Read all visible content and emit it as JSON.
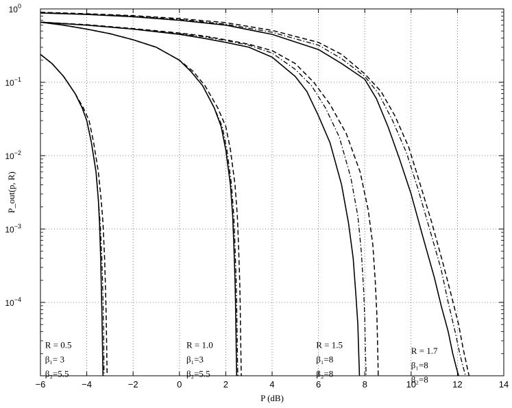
{
  "chart_data": {
    "type": "line",
    "title": "",
    "xlabel": "P (dB)",
    "ylabel": "P_out(p, R)",
    "xlim": [
      -6,
      14
    ],
    "ylim": [
      1e-05,
      1
    ],
    "yscale": "log",
    "grid": true,
    "grid_style": "dotted",
    "x_ticks": [
      -6,
      -4,
      -2,
      0,
      2,
      4,
      6,
      8,
      10,
      12,
      14
    ],
    "x_tick_labels": [
      "−6",
      "−4",
      "−2",
      "0",
      "2",
      "4",
      "6",
      "8",
      "10",
      "12",
      "14"
    ],
    "y_ticks": [
      0.0001,
      0.001,
      0.01,
      0.1,
      1
    ],
    "y_tick_labels": [
      {
        "base": "10",
        "exp": "−4"
      },
      {
        "base": "10",
        "exp": "−3"
      },
      {
        "base": "10",
        "exp": "−2"
      },
      {
        "base": "10",
        "exp": "−1"
      },
      {
        "base": "10",
        "exp": "0"
      }
    ],
    "groups": [
      {
        "label_lines": [
          "R = 0.5",
          "β₁= 3",
          "β₂=5.5"
        ],
        "label_x": -5.8,
        "label_y": 2.4e-05,
        "series": [
          {
            "style": "solid",
            "x": [
              -6,
              -5.5,
              -5,
              -4.5,
              -4.2,
              -4,
              -3.8,
              -3.6,
              -3.5,
              -3.45,
              -3.4,
              -3.38,
              -3.35,
              -3.33,
              -3.31,
              -3.3
            ],
            "y": [
              0.24,
              0.18,
              0.12,
              0.07,
              0.045,
              0.03,
              0.015,
              0.006,
              0.0025,
              0.0012,
              0.0004,
              0.0002,
              8e-05,
              4e-05,
              1.5e-05,
              1e-05
            ]
          },
          {
            "style": "dashdot",
            "x": [
              -6,
              -5.5,
              -5,
              -4.5,
              -4.2,
              -4,
              -3.8,
              -3.6,
              -3.5,
              -3.42,
              -3.35,
              -3.32,
              -3.29,
              -3.27,
              -3.26,
              -3.25
            ],
            "y": [
              0.24,
              0.18,
              0.12,
              0.07,
              0.045,
              0.03,
              0.015,
              0.006,
              0.0025,
              0.0012,
              0.0004,
              0.0002,
              8e-05,
              4e-05,
              1.5e-05,
              1e-05
            ]
          },
          {
            "style": "dashed",
            "x": [
              -6,
              -5.5,
              -5,
              -4.5,
              -4.15,
              -3.9,
              -3.7,
              -3.5,
              -3.38,
              -3.3,
              -3.23,
              -3.2,
              -3.17,
              -3.15,
              -3.13,
              -3.12
            ],
            "y": [
              0.24,
              0.18,
              0.12,
              0.07,
              0.045,
              0.03,
              0.015,
              0.006,
              0.0025,
              0.0012,
              0.0004,
              0.0002,
              8e-05,
              4e-05,
              1.5e-05,
              1e-05
            ]
          }
        ]
      },
      {
        "label_lines": [
          "R = 1.0",
          "β₁=3",
          "β₂=5.5"
        ],
        "label_x": 0.3,
        "label_y": 2.4e-05,
        "series": [
          {
            "style": "solid",
            "x": [
              -6,
              -5,
              -4,
              -3,
              -2,
              -1,
              0,
              0.5,
              1,
              1.5,
              1.8,
              2,
              2.2,
              2.3,
              2.35,
              2.4,
              2.42,
              2.44,
              2.46,
              2.47
            ],
            "y": [
              0.66,
              0.6,
              0.53,
              0.46,
              0.38,
              0.3,
              0.2,
              0.14,
              0.09,
              0.045,
              0.025,
              0.012,
              0.004,
              0.0015,
              0.0006,
              0.0002,
              0.0001,
              4e-05,
              1.5e-05,
              1e-05
            ]
          },
          {
            "style": "dashdot",
            "x": [
              -6,
              -5,
              -4,
              -3,
              -2,
              -1,
              0,
              0.5,
              1,
              1.5,
              1.85,
              2.05,
              2.25,
              2.35,
              2.4,
              2.45,
              2.47,
              2.49,
              2.51,
              2.52
            ],
            "y": [
              0.66,
              0.6,
              0.53,
              0.46,
              0.38,
              0.3,
              0.2,
              0.14,
              0.09,
              0.045,
              0.025,
              0.012,
              0.004,
              0.0015,
              0.0006,
              0.0002,
              0.0001,
              4e-05,
              1.5e-05,
              1e-05
            ]
          },
          {
            "style": "dashed",
            "x": [
              -6,
              -5,
              -4,
              -3,
              -2,
              -1,
              0,
              0.6,
              1.1,
              1.65,
              2,
              2.2,
              2.4,
              2.5,
              2.55,
              2.6,
              2.62,
              2.64,
              2.66,
              2.67
            ],
            "y": [
              0.66,
              0.6,
              0.53,
              0.46,
              0.38,
              0.3,
              0.2,
              0.14,
              0.09,
              0.045,
              0.025,
              0.012,
              0.004,
              0.0015,
              0.0006,
              0.0002,
              0.0001,
              4e-05,
              1.5e-05,
              1e-05
            ]
          }
        ]
      },
      {
        "label_lines": [
          "R = 1.5",
          "β₁=8",
          "β₂=8"
        ],
        "label_x": 5.9,
        "label_y": 2.4e-05,
        "series": [
          {
            "style": "solid",
            "x": [
              -6,
              -4,
              -2,
              0,
              1,
              2,
              3,
              4,
              5,
              5.5,
              6,
              6.5,
              7,
              7.3,
              7.5,
              7.62,
              7.7,
              7.74,
              7.76,
              7.77
            ],
            "y": [
              0.66,
              0.6,
              0.53,
              0.45,
              0.4,
              0.35,
              0.3,
              0.22,
              0.12,
              0.075,
              0.035,
              0.015,
              0.004,
              0.0012,
              0.0004,
              0.00012,
              5e-05,
              2e-05,
              1.3e-05,
              1e-05
            ]
          },
          {
            "style": "dashdot",
            "x": [
              -6,
              -4,
              -2,
              0,
              1,
              2,
              3,
              4,
              5,
              5.7,
              6.3,
              6.9,
              7.4,
              7.7,
              7.85,
              7.95,
              8,
              8.03,
              8.05,
              8.06
            ],
            "y": [
              0.66,
              0.6,
              0.53,
              0.46,
              0.42,
              0.37,
              0.32,
              0.25,
              0.15,
              0.09,
              0.045,
              0.018,
              0.005,
              0.0015,
              0.0005,
              0.00015,
              6e-05,
              2e-05,
              1.3e-05,
              1e-05
            ]
          },
          {
            "style": "dashed",
            "x": [
              -6,
              -4,
              -2,
              0,
              1,
              2,
              3,
              4,
              5,
              5.8,
              6.5,
              7.2,
              7.8,
              8.15,
              8.35,
              8.45,
              8.52,
              8.55,
              8.57,
              8.58
            ],
            "y": [
              0.66,
              0.61,
              0.54,
              0.47,
              0.43,
              0.38,
              0.33,
              0.27,
              0.18,
              0.1,
              0.05,
              0.02,
              0.006,
              0.0018,
              0.0006,
              0.0002,
              7e-05,
              3e-05,
              1.5e-05,
              1e-05
            ]
          }
        ]
      },
      {
        "label_lines": [
          "R = 1.7",
          "β₁=8",
          "β₂=8"
        ],
        "label_x": 10.0,
        "label_y": 2e-05,
        "series": [
          {
            "style": "solid",
            "x": [
              -6,
              -4,
              -2,
              0,
              2,
              4,
              6,
              7,
              8,
              8.5,
              9,
              9.5,
              10,
              10.5,
              11,
              11.3,
              11.6,
              11.8,
              11.95,
              12.05
            ],
            "y": [
              0.88,
              0.84,
              0.78,
              0.7,
              0.6,
              0.45,
              0.28,
              0.18,
              0.11,
              0.06,
              0.025,
              0.009,
              0.003,
              0.0008,
              0.00022,
              9e-05,
              4e-05,
              2e-05,
              1.3e-05,
              1e-05
            ]
          },
          {
            "style": "dashdot",
            "x": [
              -6,
              -4,
              -2,
              0,
              2,
              4,
              6,
              7,
              8,
              8.6,
              9.2,
              9.8,
              10.3,
              10.8,
              11.3,
              11.6,
              11.9,
              12.1,
              12.25,
              12.35
            ],
            "y": [
              0.89,
              0.85,
              0.8,
              0.72,
              0.62,
              0.48,
              0.32,
              0.21,
              0.12,
              0.07,
              0.03,
              0.011,
              0.0035,
              0.001,
              0.00028,
              0.0001,
              4e-05,
              2e-05,
              1.3e-05,
              1e-05
            ]
          },
          {
            "style": "dashed",
            "x": [
              -6,
              -4,
              -2,
              0,
              2,
              4,
              6,
              7,
              8,
              8.7,
              9.3,
              9.9,
              10.4,
              10.9,
              11.4,
              11.75,
              12.05,
              12.25,
              12.4,
              12.5
            ],
            "y": [
              0.9,
              0.86,
              0.81,
              0.74,
              0.65,
              0.51,
              0.35,
              0.24,
              0.13,
              0.075,
              0.035,
              0.013,
              0.004,
              0.0012,
              0.00032,
              0.00012,
              5e-05,
              2.3e-05,
              1.4e-05,
              1e-05
            ]
          }
        ]
      }
    ]
  }
}
